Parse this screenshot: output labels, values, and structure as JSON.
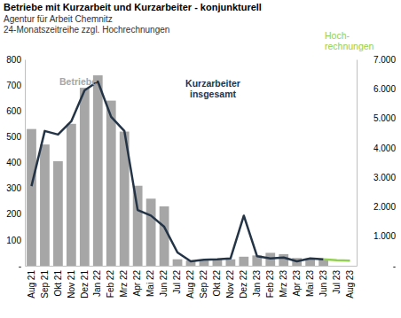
{
  "chart_data": {
    "type": "combo",
    "title": "Betriebe mit Kurzarbeit und Kurzarbeiter - konjunkturell",
    "subtitle": [
      "Agentur für Arbeit Chemnitz",
      "24-Monatszeitreihe zzgl. Hochrechnungen"
    ],
    "categories": [
      "Aug 21",
      "Sep 21",
      "Okt 21",
      "Nov 21",
      "Dez 21",
      "Jan 22",
      "Feb 22",
      "Mrz 22",
      "Apr 22",
      "Mai 22",
      "Jun 22",
      "Jul 22",
      "Aug 22",
      "Sep 22",
      "Okt 22",
      "Nov 22",
      "Dez 22",
      "Jan 23",
      "Feb 23",
      "Mrz 23",
      "Apr 23",
      "Mai 23",
      "Jun 23",
      "Jul 23",
      "Aug 23"
    ],
    "series": [
      {
        "name": "Betriebe",
        "type": "bar",
        "color": "#a6a6a6",
        "values": [
          530,
          470,
          405,
          550,
          690,
          738,
          640,
          520,
          310,
          260,
          230,
          25,
          20,
          20,
          25,
          25,
          35,
          40,
          50,
          45,
          30,
          25,
          25,
          null,
          null
        ]
      },
      {
        "name": "Kurzarbeiter insgesamt",
        "type": "line",
        "axis": "y2",
        "color": "#243447",
        "values": [
          2700,
          4570,
          4450,
          4900,
          5950,
          6250,
          5050,
          4570,
          1890,
          1700,
          1320,
          450,
          150,
          200,
          220,
          250,
          1700,
          320,
          250,
          280,
          150,
          250,
          220,
          null,
          null
        ]
      },
      {
        "name": "Hoch-rechnungen",
        "type": "line",
        "axis": "y2",
        "color": "#92d050",
        "values": [
          null,
          null,
          null,
          null,
          null,
          null,
          null,
          null,
          null,
          null,
          null,
          null,
          null,
          null,
          null,
          null,
          null,
          null,
          null,
          null,
          null,
          null,
          220,
          190,
          170
        ]
      }
    ],
    "ylim": [
      0,
      800
    ],
    "yticks": [
      {
        "value": 0,
        "label": "-"
      },
      100,
      200,
      300,
      400,
      500,
      600,
      700,
      800
    ],
    "y2lim": [
      0,
      7000
    ],
    "y2ticks": [
      {
        "value": 0,
        "label": "-"
      },
      {
        "value": 1000,
        "label": "1.000"
      },
      {
        "value": 2000,
        "label": "2.000"
      },
      {
        "value": 3000,
        "label": "3.000"
      },
      {
        "value": 4000,
        "label": "4.000"
      },
      {
        "value": 5000,
        "label": "5.000"
      },
      {
        "value": 6000,
        "label": "6.000"
      },
      {
        "value": 7000,
        "label": "7.000"
      }
    ],
    "grid": false
  }
}
